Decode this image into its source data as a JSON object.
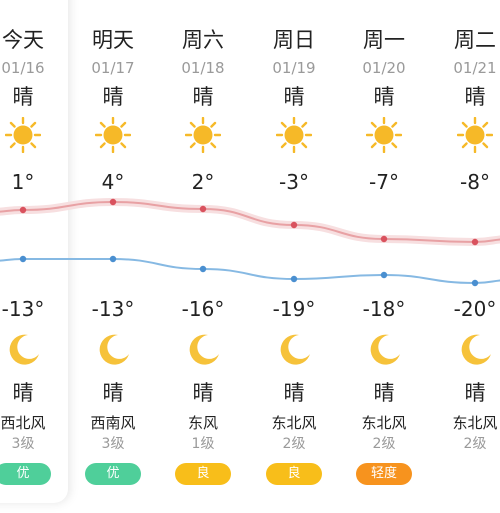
{
  "colors": {
    "high_line": "#e8a1a4",
    "high_dot": "#d9525e",
    "low_line": "#86b9e3",
    "low_dot": "#4a8fd0",
    "sun": "#f6b928",
    "moon": "#f6c23a",
    "aqi_good": "#4fcf9a",
    "aqi_moderate": "#f8be1a",
    "aqi_light": "#f7931e"
  },
  "days": [
    {
      "dow": "今天",
      "date": "01/16",
      "day_weather": "晴",
      "day_icon": "sun-icon",
      "high": "1°",
      "low": "-13°",
      "night_icon": "moon-icon",
      "night_weather": "晴",
      "wind_dir": "西北风",
      "wind_level": "3级",
      "aqi": "优",
      "aqi_level": "good"
    },
    {
      "dow": "明天",
      "date": "01/17",
      "day_weather": "晴",
      "day_icon": "sun-icon",
      "high": "4°",
      "low": "-13°",
      "night_icon": "moon-icon",
      "night_weather": "晴",
      "wind_dir": "西南风",
      "wind_level": "3级",
      "aqi": "优",
      "aqi_level": "good"
    },
    {
      "dow": "周六",
      "date": "01/18",
      "day_weather": "晴",
      "day_icon": "sun-icon",
      "high": "2°",
      "low": "-16°",
      "night_icon": "moon-icon",
      "night_weather": "晴",
      "wind_dir": "东风",
      "wind_level": "1级",
      "aqi": "良",
      "aqi_level": "moderate"
    },
    {
      "dow": "周日",
      "date": "01/19",
      "day_weather": "晴",
      "day_icon": "sun-icon",
      "high": "-3°",
      "low": "-19°",
      "night_icon": "moon-icon",
      "night_weather": "晴",
      "wind_dir": "东北风",
      "wind_level": "2级",
      "aqi": "良",
      "aqi_level": "moderate"
    },
    {
      "dow": "周一",
      "date": "01/20",
      "day_weather": "晴",
      "day_icon": "sun-icon",
      "high": "-7°",
      "low": "-18°",
      "night_icon": "moon-icon",
      "night_weather": "晴",
      "wind_dir": "东北风",
      "wind_level": "2级",
      "aqi": "轻度",
      "aqi_level": "light"
    },
    {
      "dow": "周二",
      "date": "01/21",
      "day_weather": "晴",
      "day_icon": "sun-icon",
      "high": "-8°",
      "low": "-20°",
      "night_icon": "moon-icon",
      "night_weather": "晴",
      "wind_dir": "东北风",
      "wind_level": "2级",
      "aqi": "",
      "aqi_level": ""
    }
  ],
  "chart_data": {
    "type": "line",
    "categories": [
      "01/16",
      "01/17",
      "01/18",
      "01/19",
      "01/20",
      "01/21"
    ],
    "series": [
      {
        "values": [
          1,
          4,
          2,
          -3,
          -7,
          -8
        ]
      },
      {
        "values": [
          -13,
          -13,
          -16,
          -19,
          -18,
          -20
        ]
      }
    ]
  }
}
